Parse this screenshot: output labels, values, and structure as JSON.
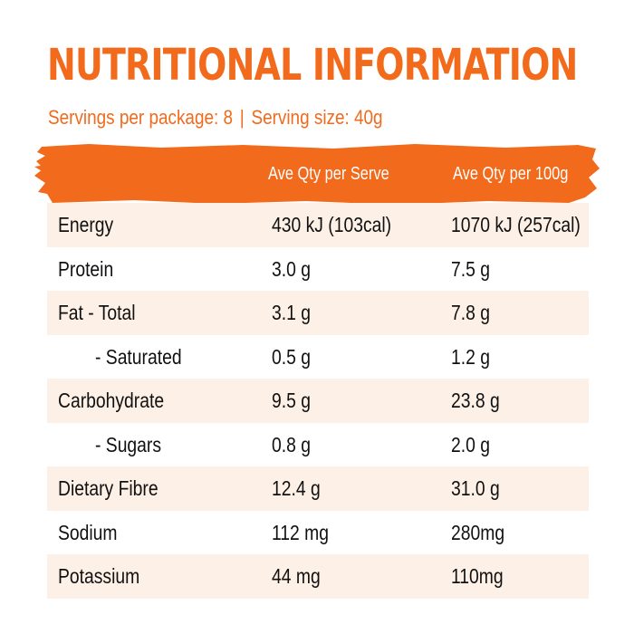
{
  "title": "NUTRITIONAL INFORMATION",
  "subtitle": {
    "servings": "Servings per package: 8",
    "separator": "|",
    "serving_size": "Serving size: 40g"
  },
  "colors": {
    "accent": "#f26a1b",
    "row_shade": "#fdf0e6",
    "text": "#111111"
  },
  "table": {
    "headers": {
      "label": "",
      "per_serve": "Ave Qty per Serve",
      "per_100g": "Ave Qty per 100g"
    },
    "rows": [
      {
        "label": "Energy",
        "per_serve": "430 kJ (103cal)",
        "per_100g": "1070 kJ (257cal)",
        "indent": false
      },
      {
        "label": "Protein",
        "per_serve": "3.0 g",
        "per_100g": "7.5 g",
        "indent": false
      },
      {
        "label": "Fat  - Total",
        "per_serve": "3.1 g",
        "per_100g": "7.8 g",
        "indent": false
      },
      {
        "label": "- Saturated",
        "per_serve": "0.5 g",
        "per_100g": "1.2 g",
        "indent": true
      },
      {
        "label": "Carbohydrate",
        "per_serve": "9.5 g",
        "per_100g": "23.8 g",
        "indent": false
      },
      {
        "label": "- Sugars",
        "per_serve": "0.8 g",
        "per_100g": "2.0 g",
        "indent": true
      },
      {
        "label": "Dietary Fibre",
        "per_serve": "12.4 g",
        "per_100g": "31.0 g",
        "indent": false
      },
      {
        "label": "Sodium",
        "per_serve": "112 mg",
        "per_100g": "280mg",
        "indent": false
      },
      {
        "label": "Potassium",
        "per_serve": "44 mg",
        "per_100g": "110mg",
        "indent": false
      }
    ]
  }
}
